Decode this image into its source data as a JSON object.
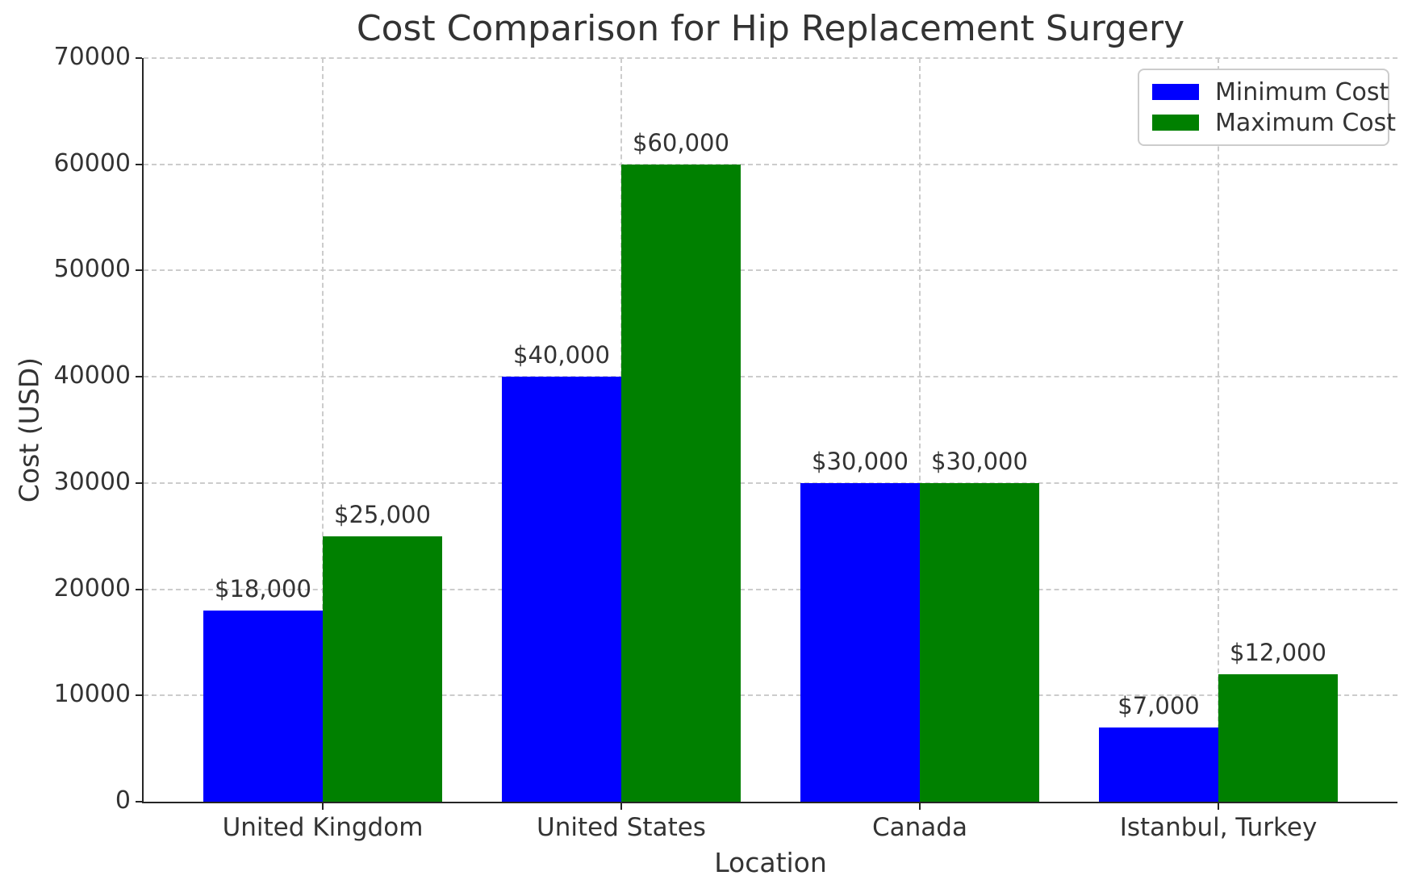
{
  "chart_data": {
    "type": "bar",
    "title": "Cost Comparison for Hip Replacement Surgery",
    "xlabel": "Location",
    "ylabel": "Cost (USD)",
    "categories": [
      "United Kingdom",
      "United States",
      "Canada",
      "Istanbul, Turkey"
    ],
    "series": [
      {
        "name": "Minimum Cost",
        "color": "#0000ff",
        "values": [
          18000,
          40000,
          30000,
          7000
        ],
        "value_labels": [
          "$18,000",
          "$40,000",
          "$30,000",
          "$7,000"
        ]
      },
      {
        "name": "Maximum Cost",
        "color": "#008000",
        "values": [
          25000,
          60000,
          30000,
          12000
        ],
        "value_labels": [
          "$25,000",
          "$60,000",
          "$30,000",
          "$12,000"
        ]
      }
    ],
    "ylim": [
      0,
      70000
    ],
    "yticks": [
      0,
      10000,
      20000,
      30000,
      40000,
      50000,
      60000,
      70000
    ],
    "bar_width": 0.4,
    "grid": {
      "style": "dashed",
      "color": "#cccccc",
      "axes": "both"
    },
    "legend_position": "upper right"
  },
  "colors": {
    "background": "#ffffff",
    "axis": "#262626",
    "text": "#333333",
    "grid": "#cccccc",
    "min_bar": "#0000ff",
    "max_bar": "#008000"
  }
}
